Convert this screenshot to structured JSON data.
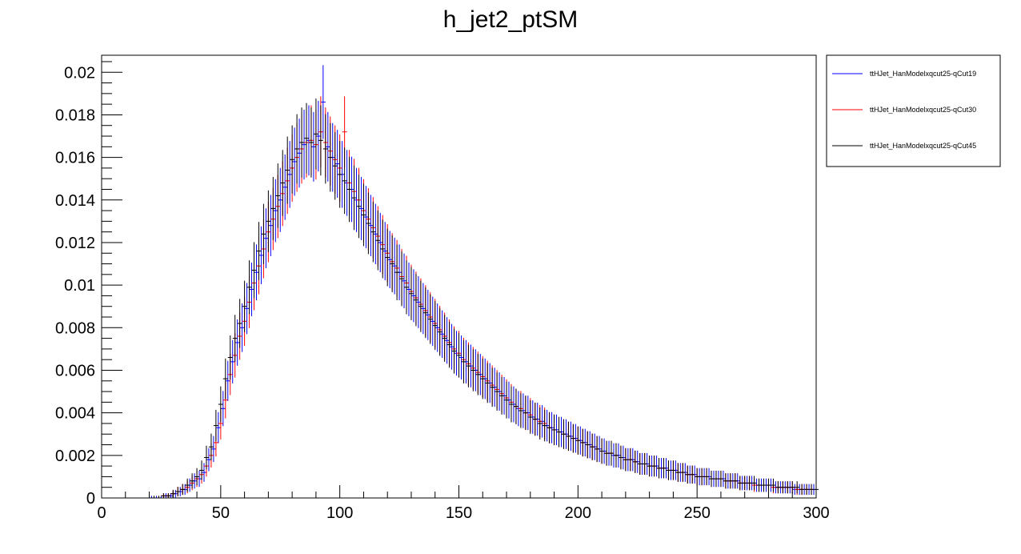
{
  "chart_data": {
    "type": "scatter",
    "title": "h_jet2_ptSM",
    "xlabel": "",
    "ylabel": "",
    "xlim": [
      0,
      300
    ],
    "ylim": [
      0,
      0.0208
    ],
    "x_ticks": [
      0,
      50,
      100,
      150,
      200,
      250,
      300
    ],
    "x_tick_labels": [
      "0",
      "50",
      "100",
      "150",
      "200",
      "250",
      "300"
    ],
    "y_ticks": [
      0,
      0.002,
      0.004,
      0.006,
      0.008,
      0.01,
      0.012,
      0.014,
      0.016,
      0.018,
      0.02
    ],
    "y_tick_labels": [
      "0",
      "0.002",
      "0.004",
      "0.006",
      "0.008",
      "0.01",
      "0.012",
      "0.014",
      "0.016",
      "0.018",
      "0.02"
    ],
    "grid": false,
    "legend_position": "top-right (outside plot)",
    "bin_width": 2,
    "series": [
      {
        "name": "ttHJet_HanModelxqcut25-qCut19",
        "color": "#0000ff",
        "x_start": 21,
        "values": [
          0,
          0,
          0,
          0.0001,
          0.0001,
          0.0002,
          0.0003,
          0.0004,
          0.0006,
          0.0008,
          0.0009,
          0.0012,
          0.0018,
          0.0023,
          0.0033,
          0.0042,
          0.0055,
          0.0064,
          0.0073,
          0.008,
          0.0089,
          0.0098,
          0.0106,
          0.0114,
          0.0122,
          0.0128,
          0.0135,
          0.014,
          0.0146,
          0.0152,
          0.0158,
          0.0162,
          0.0166,
          0.0168,
          0.0165,
          0.017,
          0.0186,
          0.0165,
          0.016,
          0.0157,
          0.0152,
          0.0148,
          0.0145,
          0.014,
          0.0136,
          0.0132,
          0.0128,
          0.0124,
          0.012,
          0.0116,
          0.0112,
          0.0109,
          0.0106,
          0.0102,
          0.0098,
          0.0095,
          0.0092,
          0.0089,
          0.0086,
          0.0083,
          0.008,
          0.0077,
          0.0074,
          0.0071,
          0.0068,
          0.0066,
          0.0064,
          0.0062,
          0.006,
          0.0058,
          0.0056,
          0.0054,
          0.0052,
          0.005,
          0.0048,
          0.0046,
          0.0044,
          0.0042,
          0.0041,
          0.004,
          0.0038,
          0.0037,
          0.0036,
          0.0034,
          0.0033,
          0.0032,
          0.0031,
          0.003,
          0.0029,
          0.0028,
          0.0027,
          0.0026,
          0.0025,
          0.0024,
          0.0023,
          0.0022,
          0.0021,
          0.002,
          0.002,
          0.0019,
          0.0018,
          0.0018,
          0.0017,
          0.0016,
          0.0016,
          0.0015,
          0.0015,
          0.0014,
          0.0014,
          0.0013,
          0.0013,
          0.0012,
          0.0012,
          0.0011,
          0.0011,
          0.001,
          0.001,
          0.001,
          0.0009,
          0.0009,
          0.0009,
          0.0008,
          0.0008,
          0.0008,
          0.0007,
          0.0007,
          0.0007,
          0.0006,
          0.0006,
          0.0006,
          0.0006,
          0.0005,
          0.0005,
          0.0005,
          0.0005,
          0.0004,
          0.0004,
          0.0004,
          0.0004,
          0.0004
        ]
      },
      {
        "name": "ttHJet_HanModelxqcut25-qCut30",
        "color": "#ff0000",
        "x_start": 22,
        "values": [
          0,
          0,
          0.0001,
          0.0001,
          0.0002,
          0.0003,
          0.0004,
          0.0005,
          0.0007,
          0.0009,
          0.0011,
          0.0015,
          0.002,
          0.0026,
          0.0035,
          0.0046,
          0.0058,
          0.0067,
          0.0076,
          0.0083,
          0.0092,
          0.0101,
          0.0109,
          0.0117,
          0.0125,
          0.0131,
          0.0137,
          0.0143,
          0.0149,
          0.0155,
          0.016,
          0.0164,
          0.0167,
          0.0168,
          0.0166,
          0.0172,
          0.0167,
          0.0163,
          0.0159,
          0.0155,
          0.0172,
          0.0148,
          0.0144,
          0.014,
          0.0135,
          0.0131,
          0.0127,
          0.0123,
          0.0119,
          0.0115,
          0.0111,
          0.0108,
          0.0104,
          0.0101,
          0.0097,
          0.0094,
          0.0091,
          0.0088,
          0.0085,
          0.0082,
          0.0079,
          0.0076,
          0.0073,
          0.007,
          0.0068,
          0.0065,
          0.0063,
          0.0061,
          0.0059,
          0.0057,
          0.0055,
          0.0053,
          0.0051,
          0.0049,
          0.0047,
          0.0045,
          0.0043,
          0.0042,
          0.004,
          0.0039,
          0.0037,
          0.0036,
          0.0035,
          0.0033,
          0.0032,
          0.0031,
          0.003,
          0.0029,
          0.0028,
          0.0027,
          0.0026,
          0.0025,
          0.0024,
          0.0023,
          0.0022,
          0.0021,
          0.0021,
          0.002,
          0.0019,
          0.0018,
          0.0018,
          0.0017,
          0.0016,
          0.0016,
          0.0015,
          0.0015,
          0.0014,
          0.0014,
          0.0013,
          0.0013,
          0.0012,
          0.0012,
          0.0011,
          0.0011,
          0.001,
          0.001,
          0.001,
          0.0009,
          0.0009,
          0.0009,
          0.0008,
          0.0008,
          0.0008,
          0.0007,
          0.0007,
          0.0007,
          0.0006,
          0.0006,
          0.0006,
          0.0006,
          0.0005,
          0.0005,
          0.0005,
          0.0005,
          0.0005,
          0.0004,
          0.0004,
          0.0004,
          0.0004
        ]
      },
      {
        "name": "ttHJet_HanModelxqcut25-qCut45",
        "color": "#000000",
        "x_start": 20,
        "values": [
          0,
          0,
          0,
          0.0001,
          0.0001,
          0.0002,
          0.0003,
          0.0004,
          0.0006,
          0.0008,
          0.001,
          0.0013,
          0.0019,
          0.0024,
          0.0034,
          0.0044,
          0.0056,
          0.0066,
          0.0075,
          0.0082,
          0.009,
          0.0099,
          0.0107,
          0.0116,
          0.0124,
          0.013,
          0.0136,
          0.0142,
          0.0148,
          0.0154,
          0.0159,
          0.0164,
          0.0167,
          0.0169,
          0.0167,
          0.0171,
          0.0168,
          0.0164,
          0.016,
          0.0156,
          0.0152,
          0.0149,
          0.0145,
          0.0141,
          0.0137,
          0.0133,
          0.0129,
          0.0125,
          0.0121,
          0.0117,
          0.0113,
          0.011,
          0.0106,
          0.0103,
          0.0099,
          0.0096,
          0.0093,
          0.009,
          0.0087,
          0.0084,
          0.0081,
          0.0078,
          0.0075,
          0.0072,
          0.0069,
          0.0067,
          0.0064,
          0.0062,
          0.006,
          0.0058,
          0.0056,
          0.0054,
          0.0052,
          0.005,
          0.0048,
          0.0046,
          0.0044,
          0.0043,
          0.0041,
          0.004,
          0.0038,
          0.0037,
          0.0035,
          0.0034,
          0.0033,
          0.0032,
          0.0031,
          0.003,
          0.0029,
          0.0028,
          0.0027,
          0.0026,
          0.0025,
          0.0024,
          0.0023,
          0.0022,
          0.0021,
          0.0021,
          0.002,
          0.0019,
          0.0018,
          0.0018,
          0.0017,
          0.0016,
          0.0016,
          0.0015,
          0.0015,
          0.0014,
          0.0014,
          0.0013,
          0.0013,
          0.0012,
          0.0012,
          0.0011,
          0.0011,
          0.001,
          0.001,
          0.001,
          0.0009,
          0.0009,
          0.0009,
          0.0008,
          0.0008,
          0.0008,
          0.0007,
          0.0007,
          0.0007,
          0.0007,
          0.0006,
          0.0006,
          0.0006,
          0.0006,
          0.0005,
          0.0005,
          0.0005,
          0.0005,
          0.0005,
          0.0004,
          0.0004,
          0.0004,
          0.0004
        ]
      }
    ]
  }
}
